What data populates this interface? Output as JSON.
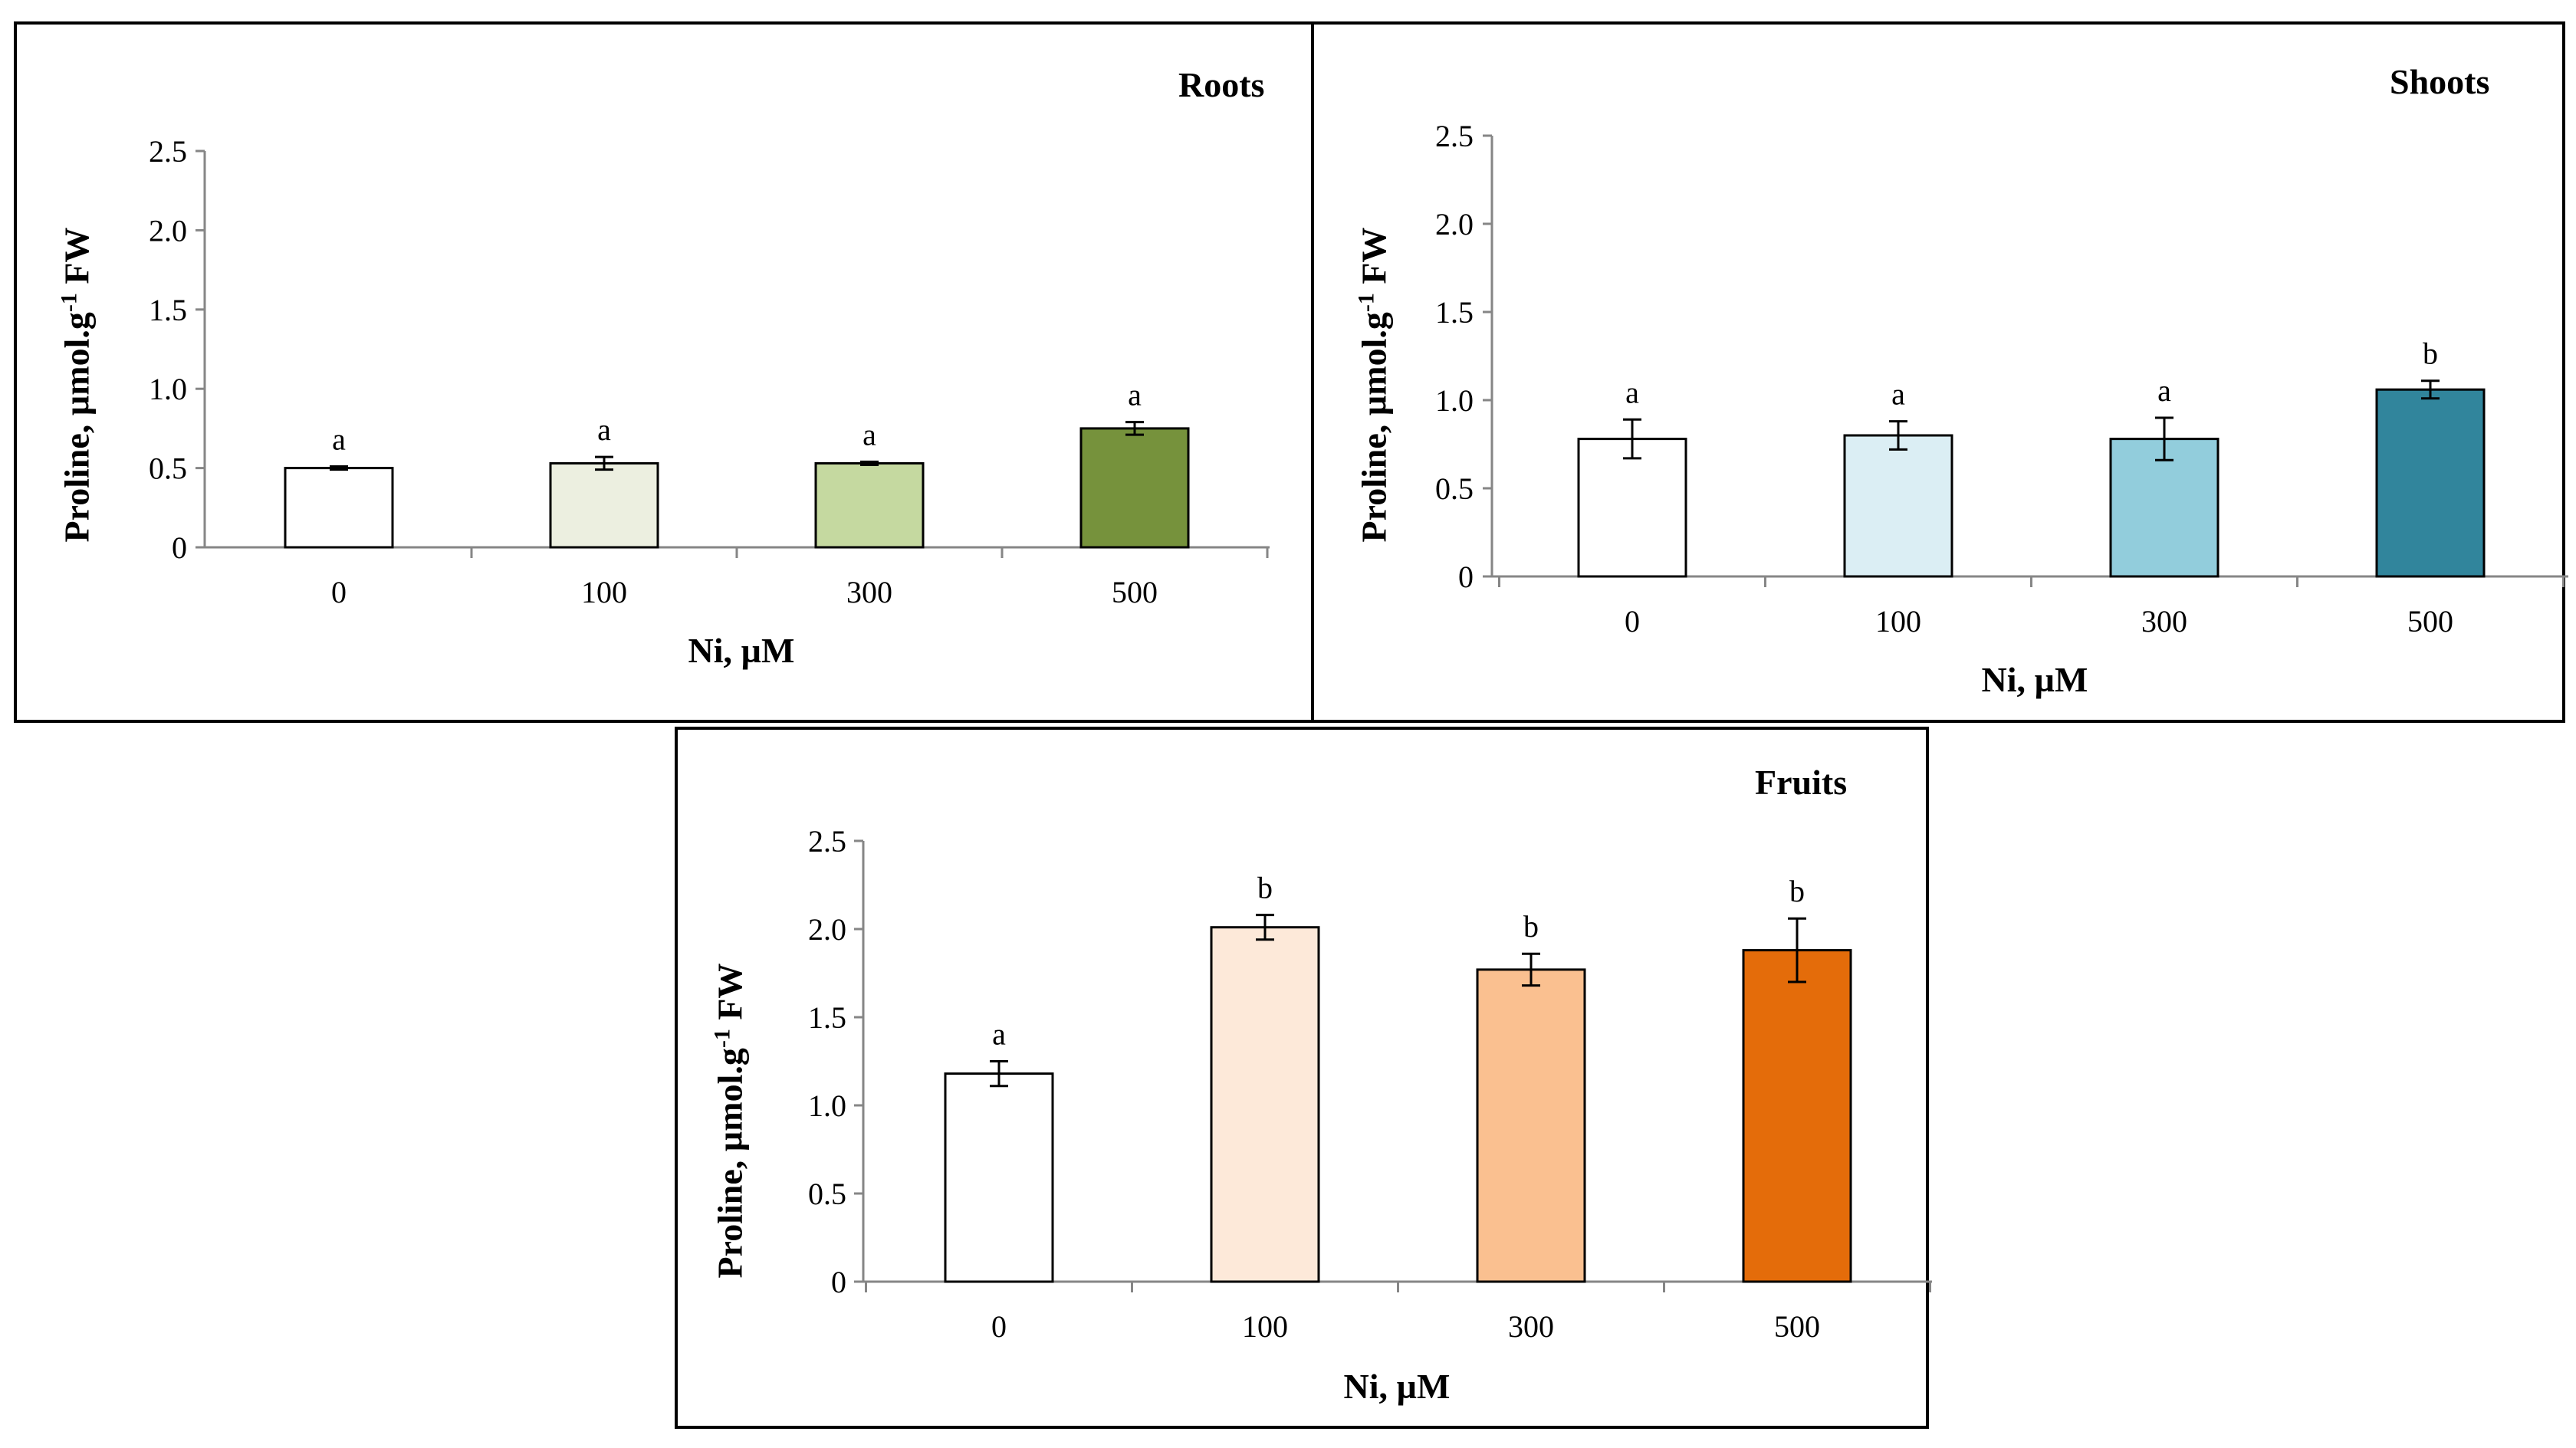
{
  "chart_data": [
    {
      "id": "roots",
      "type": "bar",
      "title": "Roots",
      "xlabel": "Ni, µM",
      "ylabel": {
        "main": "Proline,  µmol.g",
        "sup": "-1",
        "unit": " FW"
      },
      "ylim": [
        0,
        2.5
      ],
      "yticks": [
        "0",
        "0.5",
        "1.0",
        "1.5",
        "2.0",
        "2.5"
      ],
      "categories": [
        "0",
        "100",
        "300",
        "500"
      ],
      "values": [
        0.5,
        0.53,
        0.53,
        0.75
      ],
      "errors": [
        0.01,
        0.04,
        0.01,
        0.04
      ],
      "letters": [
        "a",
        "a",
        "a",
        "a"
      ],
      "colors": [
        "#ffffff",
        "#ecefe0",
        "#c5d9a0",
        "#76923c"
      ],
      "grid": false,
      "legend": "none"
    },
    {
      "id": "shoots",
      "type": "bar",
      "title": "Shoots",
      "xlabel": "Ni, µM",
      "ylabel": {
        "main": "Proline,  µmol.g",
        "sup": "-1",
        "unit": " FW"
      },
      "ylim": [
        0,
        2.5
      ],
      "yticks": [
        "0",
        "0.5",
        "1.0",
        "1.5",
        "2.0",
        "2.5"
      ],
      "categories": [
        "0",
        "100",
        "300",
        "500"
      ],
      "values": [
        0.78,
        0.8,
        0.78,
        1.06
      ],
      "errors": [
        0.11,
        0.08,
        0.12,
        0.05
      ],
      "letters": [
        "a",
        "a",
        "a",
        "b"
      ],
      "colors": [
        "#ffffff",
        "#dbeef4",
        "#92cddc",
        "#31859c"
      ],
      "grid": false,
      "legend": "none"
    },
    {
      "id": "fruits",
      "type": "bar",
      "title": "Fruits",
      "xlabel": "Ni, µM",
      "ylabel": {
        "main": "Proline,  µmol.g",
        "sup": "-1",
        "unit": " FW"
      },
      "ylim": [
        0,
        2.5
      ],
      "yticks": [
        "0",
        "0.5",
        "1.0",
        "1.5",
        "2.0",
        "2.5"
      ],
      "categories": [
        "0",
        "100",
        "300",
        "500"
      ],
      "values": [
        1.18,
        2.01,
        1.77,
        1.88
      ],
      "errors": [
        0.07,
        0.07,
        0.09,
        0.18
      ],
      "letters": [
        "a",
        "b",
        "b",
        "b"
      ],
      "colors": [
        "#ffffff",
        "#fde9d9",
        "#fac090",
        "#e46c0a"
      ],
      "grid": false,
      "legend": "none"
    }
  ]
}
